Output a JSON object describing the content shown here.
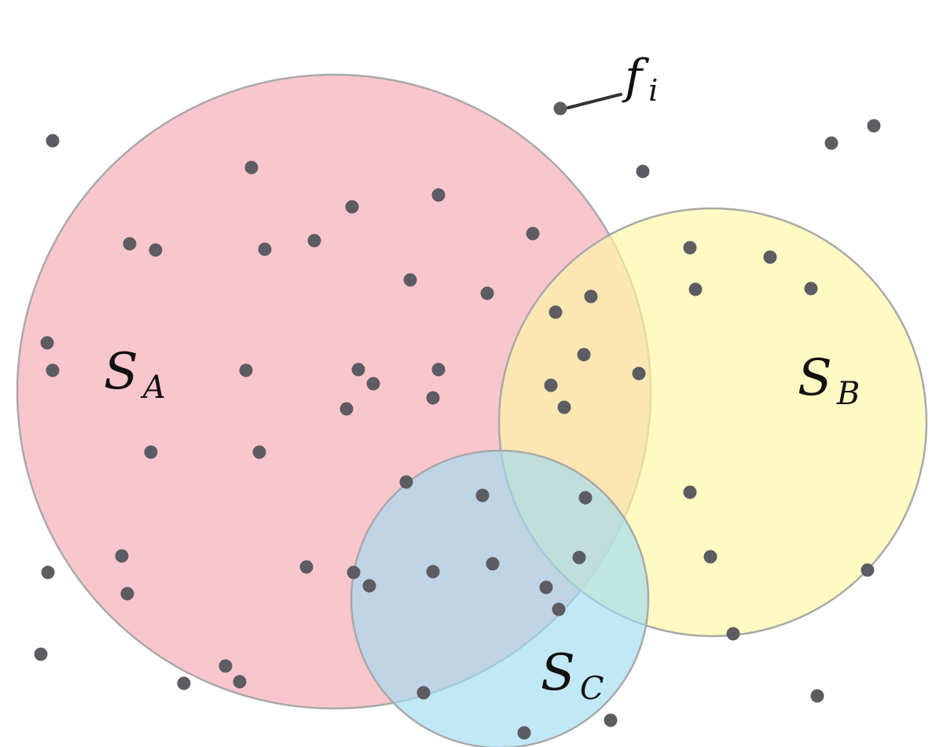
{
  "sets": [
    {
      "key": "A",
      "label": "S",
      "subscript": "A",
      "fill": "#f7a7b4",
      "opacity": 0.65
    },
    {
      "key": "B",
      "label": "S",
      "subscript": "B",
      "fill": "#fdf7a1",
      "opacity": 0.65
    },
    {
      "key": "C",
      "label": "S",
      "subscript": "C",
      "fill": "#9fdcf1",
      "opacity": 0.65
    }
  ],
  "feature_label": {
    "text": "f",
    "subscript": "i"
  },
  "colors": {
    "dot": "#5c5c62",
    "circle_stroke": "#a9a9a9"
  }
}
